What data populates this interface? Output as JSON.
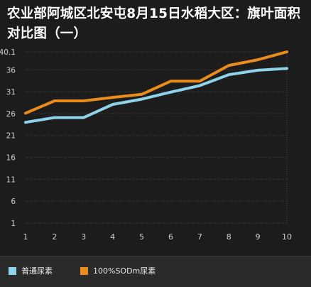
{
  "chart_data": {
    "type": "line",
    "title": "农业部阿城区北安屯8月15日水稻大区：旗叶面积对比图（一）",
    "x": [
      1,
      2,
      3,
      4,
      5,
      6,
      7,
      8,
      9,
      10
    ],
    "x_tick_labels": [
      "1",
      "2",
      "3",
      "4",
      "5",
      "6",
      "7",
      "8",
      "9",
      "10"
    ],
    "y_tick_labels": [
      "1",
      "6",
      "11",
      "16",
      "21",
      "26",
      "31",
      "36",
      "40.1"
    ],
    "ylim": [
      1,
      40.1
    ],
    "grid": true,
    "legend_position": "bottom",
    "series": [
      {
        "name": "普通尿素",
        "color": "#8fd3ea",
        "values": [
          24.0,
          25.1,
          25.1,
          28.1,
          29.3,
          30.9,
          32.4,
          34.9,
          35.9,
          36.3
        ]
      },
      {
        "name": "100%SODm尿素",
        "color": "#ea8c1c",
        "values": [
          26.1,
          28.9,
          28.9,
          29.7,
          30.4,
          33.4,
          33.4,
          37.0,
          38.3,
          40.1
        ]
      }
    ]
  }
}
